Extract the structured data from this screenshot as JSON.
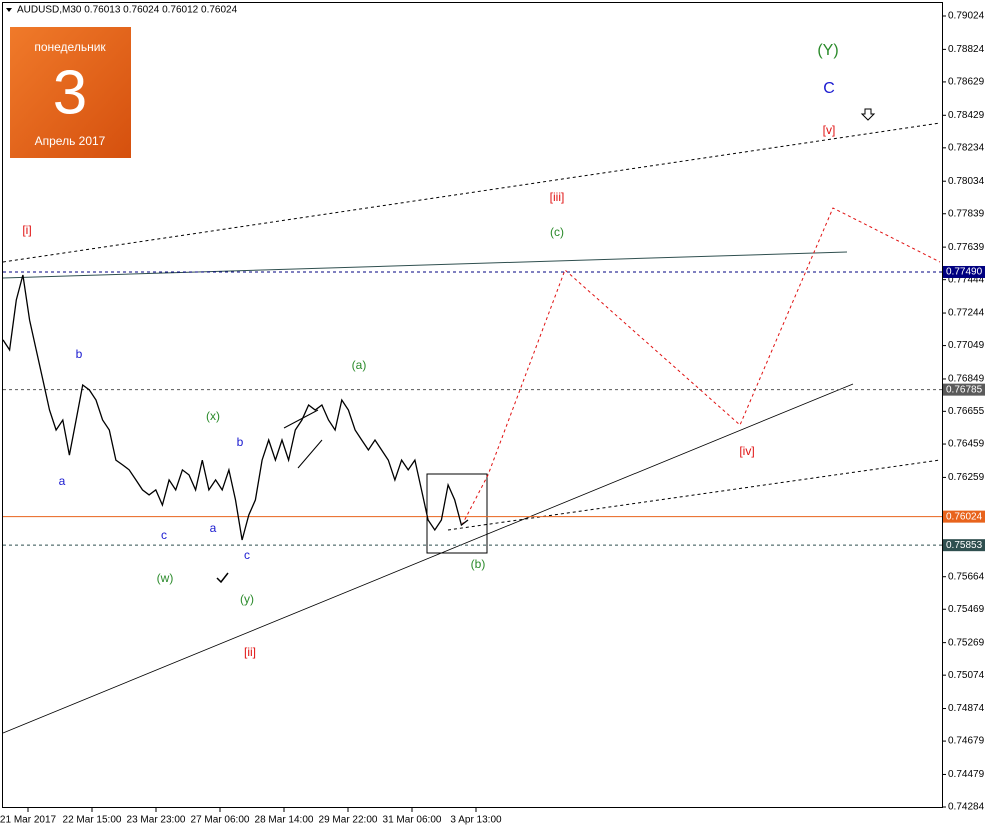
{
  "chart_data": {
    "type": "line",
    "title": "AUDUSD,M30  0.76013 0.76024 0.76012 0.76024",
    "calendar": {
      "weekday": "понедельник",
      "day": "3",
      "month": "Апрель 2017"
    },
    "color": "#000000",
    "values": [
      0.77083,
      0.77023,
      0.77322,
      0.77472,
      0.77202,
      0.77023,
      0.76843,
      0.76663,
      0.76543,
      0.76603,
      0.76393,
      0.76603,
      0.76813,
      0.76783,
      0.76723,
      0.76603,
      0.76543,
      0.76363,
      0.76334,
      0.76304,
      0.76244,
      0.76184,
      0.76154,
      0.76184,
      0.76094,
      0.76244,
      0.76184,
      0.76304,
      0.76274,
      0.76184,
      0.76363,
      0.76184,
      0.76244,
      0.76184,
      0.76304,
      0.76124,
      0.75884,
      0.76034,
      0.76124,
      0.76363,
      0.76483,
      0.76363,
      0.76483,
      0.76363,
      0.76543,
      0.76603,
      0.76693,
      0.76663,
      0.76693,
      0.76603,
      0.76543,
      0.76723,
      0.76663,
      0.76543,
      0.76483,
      0.76423,
      0.76483,
      0.76423,
      0.76363,
      0.76244,
      0.76363,
      0.76304,
      0.76363,
      0.76184,
      0.76004,
      0.75944,
      0.76004,
      0.76214,
      0.76124,
      0.75974,
      0.76004
    ],
    "time_labels": [
      "21 Mar 2017",
      "22 Mar 15:00",
      "23 Mar 23:00",
      "27 Mar 06:00",
      "28 Mar 14:00",
      "29 Mar 22:00",
      "31 Mar 06:00",
      "3 Apr 13:00"
    ],
    "ylim": [
      0.74284,
      0.79024
    ],
    "yticks": [
      0.79024,
      0.78824,
      0.78629,
      0.78429,
      0.78234,
      0.78034,
      0.77839,
      0.77639,
      0.77444,
      0.77244,
      0.77049,
      0.76849,
      0.76655,
      0.76459,
      0.76259,
      0.75664,
      0.75469,
      0.75269,
      0.75074,
      0.74874,
      0.74679,
      0.74479,
      0.74284
    ],
    "levels": [
      {
        "value": 0.7749,
        "label": "0.77490",
        "color": "#000080"
      },
      {
        "value": 0.76785,
        "label": "0.76785",
        "color": "#5a5a5a"
      },
      {
        "value": 0.76024,
        "label": "0.76024",
        "color": "#e8631c"
      },
      {
        "value": 0.75853,
        "label": "0.75853",
        "color": "#2f4f4f"
      }
    ],
    "annotations": [
      {
        "text": "[i]",
        "color": "#e01010"
      },
      {
        "text": "b",
        "color": "#1a1ad0"
      },
      {
        "text": "a",
        "color": "#1a1ad0"
      },
      {
        "text": "c",
        "color": "#1a1ad0"
      },
      {
        "text": "(x)",
        "color": "#2a8a2a"
      },
      {
        "text": "b",
        "color": "#1a1ad0"
      },
      {
        "text": "a",
        "color": "#1a1ad0"
      },
      {
        "text": "c",
        "color": "#1a1ad0"
      },
      {
        "text": "(w)",
        "color": "#2a8a2a"
      },
      {
        "text": "(y)",
        "color": "#2a8a2a"
      },
      {
        "text": "[ii]",
        "color": "#e01010"
      },
      {
        "text": "(a)",
        "color": "#2a8a2a"
      },
      {
        "text": "(b)",
        "color": "#2a8a2a"
      },
      {
        "text": "(c)",
        "color": "#2a8a2a"
      },
      {
        "text": "[iii]",
        "color": "#e01010"
      },
      {
        "text": "[iv]",
        "color": "#e01010"
      },
      {
        "text": "[v]",
        "color": "#e01010"
      },
      {
        "text": "(Y)",
        "color": "#2a8a2a"
      },
      {
        "text": "C",
        "color": "#1a1ad0"
      }
    ]
  }
}
